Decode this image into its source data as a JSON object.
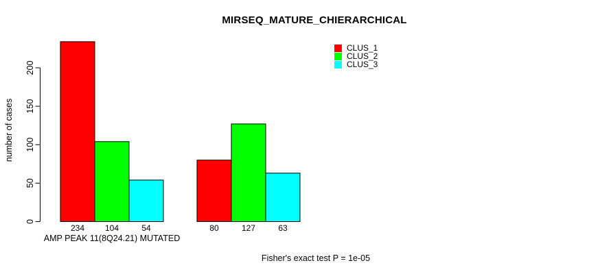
{
  "chart_data": {
    "type": "bar",
    "title": "MIRSEQ_MATURE_CHIERARCHICAL",
    "ylabel": "number of cases",
    "xlabel": "",
    "ylim": [
      0,
      240
    ],
    "yticks": [
      0,
      50,
      100,
      150,
      200
    ],
    "grid": false,
    "legend_position": "top-right",
    "bar_border_color": "#000000",
    "series": [
      {
        "name": "CLUS_1",
        "color": "#FF0000"
      },
      {
        "name": "CLUS_2",
        "color": "#00FF00"
      },
      {
        "name": "CLUS_3",
        "color": "#00FFFF"
      }
    ],
    "groups": [
      {
        "label": "AMP PEAK 11(8Q24.21) MUTATED",
        "values": [
          234,
          104,
          54
        ]
      },
      {
        "label": "",
        "values": [
          80,
          127,
          63
        ]
      }
    ],
    "bar_value_labels": [
      234,
      104,
      54,
      80,
      127,
      63
    ],
    "annotation": "Fisher's exact test P = 1e-05"
  }
}
